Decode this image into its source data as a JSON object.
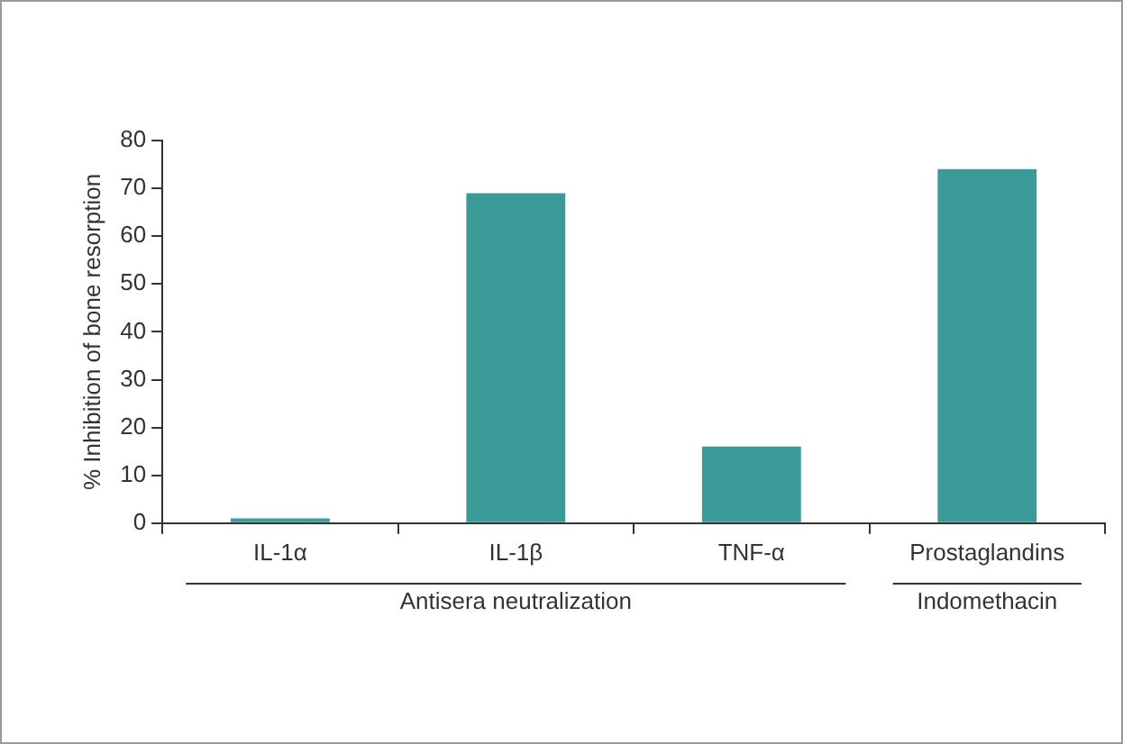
{
  "chart_data": {
    "type": "bar",
    "ylabel": "% Inhibition of bone resorption",
    "categories": [
      "IL-1α",
      "IL-1β",
      "TNF-α",
      "Prostaglandins"
    ],
    "values": [
      1,
      69,
      16,
      74
    ],
    "color": "#3a9a98",
    "ylim": [
      0,
      80
    ],
    "yticks": [
      0,
      10,
      20,
      30,
      40,
      50,
      60,
      70,
      80
    ],
    "grid": false,
    "legend": false,
    "annotations": [
      "Antisera neutralization",
      "Indomethacin"
    ]
  }
}
